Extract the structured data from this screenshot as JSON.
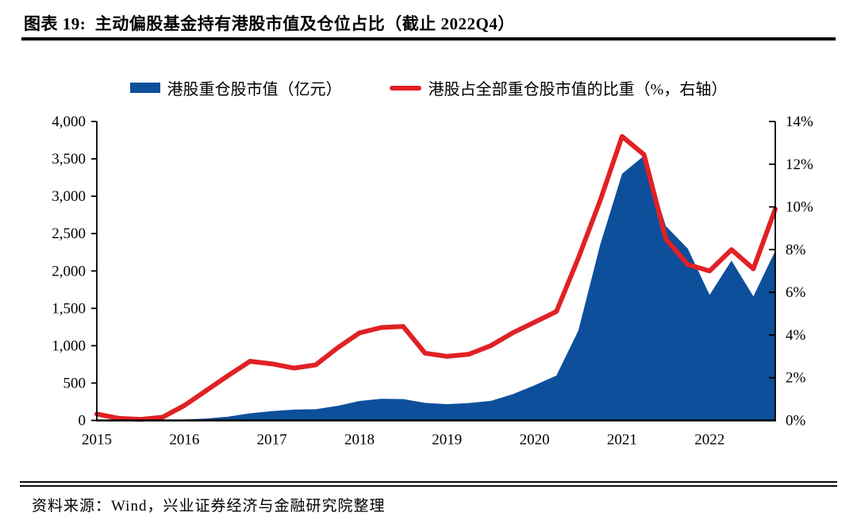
{
  "header": {
    "title": "图表 19:  主动偏股基金持有港股市值及仓位占比（截止 2022Q4）"
  },
  "legend": {
    "area_label": "港股重仓股市值（亿元）",
    "line_label": "港股占全部重仓股市值的比重（%，右轴）"
  },
  "footer": {
    "source": "资料来源：Wind，兴业证券经济与金融研究院整理"
  },
  "colors": {
    "area_blue": "#0D4F9B",
    "line_red": "#E02125",
    "axis_black": "#000000"
  },
  "chart_data": {
    "type": "area+line",
    "title": "主动偏股基金持有港股市值及仓位占比（截止 2022Q4）",
    "x": [
      "2015Q1",
      "2015Q2",
      "2015Q3",
      "2015Q4",
      "2016Q1",
      "2016Q2",
      "2016Q3",
      "2016Q4",
      "2017Q1",
      "2017Q2",
      "2017Q3",
      "2017Q4",
      "2018Q1",
      "2018Q2",
      "2018Q3",
      "2018Q4",
      "2019Q1",
      "2019Q2",
      "2019Q3",
      "2019Q4",
      "2020Q1",
      "2020Q2",
      "2020Q3",
      "2020Q4",
      "2021Q1",
      "2021Q2",
      "2021Q3",
      "2021Q4",
      "2022Q1",
      "2022Q2",
      "2022Q3",
      "2022Q4"
    ],
    "series": [
      {
        "name": "港股重仓股市值（亿元）",
        "type": "area",
        "axis": "left",
        "color": "#0D4F9B",
        "values": [
          8,
          5,
          4,
          6,
          12,
          25,
          50,
          95,
          125,
          145,
          150,
          195,
          260,
          290,
          285,
          235,
          218,
          232,
          262,
          350,
          470,
          600,
          1200,
          2350,
          3300,
          3540,
          2600,
          2300,
          1680,
          2140,
          1660,
          2270
        ]
      },
      {
        "name": "港股占全部重仓股市值的比重（%，右轴）",
        "type": "line",
        "axis": "right",
        "color": "#E02125",
        "values": [
          0.3,
          0.1,
          0.05,
          0.15,
          0.7,
          1.4,
          2.1,
          2.77,
          2.65,
          2.45,
          2.6,
          3.4,
          4.1,
          4.35,
          4.4,
          3.15,
          3.0,
          3.1,
          3.5,
          4.1,
          4.6,
          5.1,
          7.6,
          10.3,
          13.3,
          12.45,
          8.5,
          7.3,
          7.0,
          8.0,
          7.1,
          9.9
        ]
      }
    ],
    "left_axis": {
      "min": 0,
      "max": 4000,
      "tick_step": 500,
      "tick_labels": [
        "0",
        "500",
        "1,000",
        "1,500",
        "2,000",
        "2,500",
        "3,000",
        "3,500",
        "4,000"
      ]
    },
    "right_axis": {
      "min": 0,
      "max": 14,
      "tick_step": 2,
      "tick_labels": [
        "0%",
        "2%",
        "4%",
        "6%",
        "8%",
        "10%",
        "12%",
        "14%"
      ]
    },
    "x_tick_labels": [
      "2015",
      "2016",
      "2017",
      "2018",
      "2019",
      "2020",
      "2021",
      "2022"
    ],
    "grid": false,
    "legend_position": "top"
  }
}
